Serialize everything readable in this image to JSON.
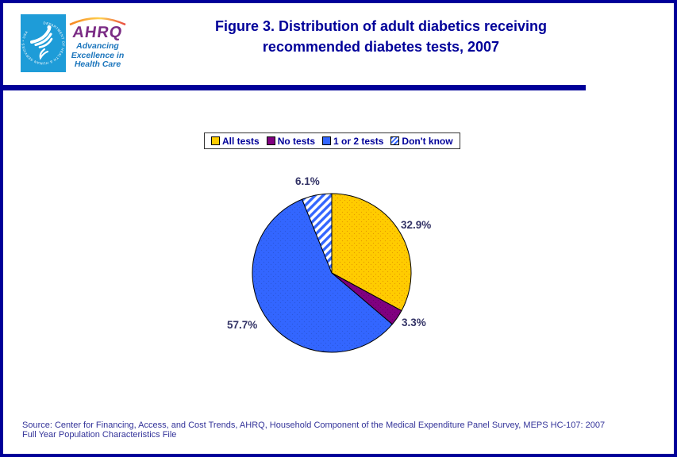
{
  "colors": {
    "accent_navy": "#000099",
    "pct_label_color": "#333366",
    "source_text_color": "#333399",
    "hhs_seal_blue": "#1E9CD8",
    "ahrq_purple": "#7B2C85",
    "tagline_blue": "#1B75BC"
  },
  "logo": {
    "hhs_ring_text": "DEPARTMENT OF HEALTH & HUMAN SERVICES • USA",
    "acronym": "AHRQ",
    "tagline_line1": "Advancing",
    "tagline_line2": "Excellence in",
    "tagline_line3": "Health Care"
  },
  "header": {
    "title_line1": "Figure 3. Distribution of adult diabetics receiving",
    "title_line2": "recommended diabetes tests, 2007"
  },
  "chart_data": {
    "type": "pie",
    "title": "Figure 3. Distribution of adult diabetics receiving recommended diabetes tests, 2007",
    "legend_position": "top",
    "start_angle_deg": 0,
    "direction": "clockwise",
    "slices": [
      {
        "label": "All tests",
        "value": 32.9,
        "display": "32.9%",
        "color": "#FFCC00",
        "dot_color": "#E69A00",
        "pattern": "dots"
      },
      {
        "label": "No tests",
        "value": 3.3,
        "display": "3.3%",
        "color": "#800080",
        "dot_color": "#660066",
        "pattern": "dots"
      },
      {
        "label": "1 or 2 tests",
        "value": 57.7,
        "display": "57.7%",
        "color": "#3366FF",
        "dot_color": "#2B57DD",
        "pattern": "dots"
      },
      {
        "label": "Don't know",
        "value": 6.1,
        "display": "6.1%",
        "color": "#3366FF",
        "dot_color": "#FFFFFF",
        "pattern": "hatch"
      }
    ]
  },
  "footer": {
    "source_line1": "Source: Center for Financing, Access, and Cost Trends, AHRQ, Household Component of the Medical Expenditure Panel Survey, MEPS HC-107: 2007",
    "source_line2": "Full Year Population Characteristics File"
  }
}
